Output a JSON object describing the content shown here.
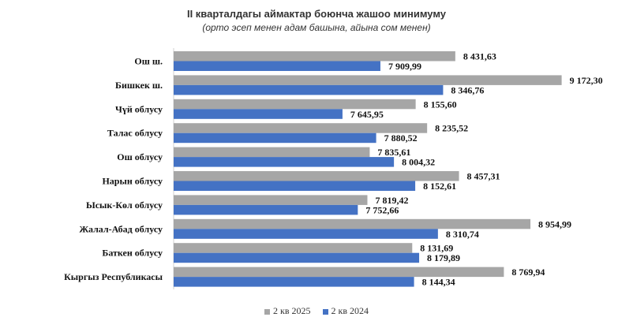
{
  "chart_data": {
    "type": "bar",
    "orientation": "horizontal",
    "title": "II кварталдагы аймактар боюнча жашоо минимуму",
    "subtitle": "(орто эсеп менен адам башына, айына сом менен)",
    "categories": [
      "Ош ш.",
      "Бишкек ш.",
      "Чүй облусу",
      "Талас облусу",
      "Ош облусу",
      "Нарын облусу",
      "Ысык-Көл облусу",
      "Жалал-Абад облусу",
      "Баткен облусу",
      "Кыргыз Республикасы"
    ],
    "series": [
      {
        "name": "2 кв 2025",
        "color": "#a6a6a6",
        "values": [
          8431.63,
          9172.3,
          8155.6,
          8235.52,
          7835.61,
          8457.31,
          7819.42,
          8954.99,
          8131.69,
          8769.94
        ],
        "labels": [
          "8 431,63",
          "9 172,30",
          "8 155,60",
          "8 235,52",
          "7 835,61",
          "8 457,31",
          "7 819,42",
          "8 954,99",
          "8 131,69",
          "8 769,94"
        ]
      },
      {
        "name": "2 кв 2024",
        "color": "#4472c4",
        "values": [
          7909.99,
          8346.76,
          7645.95,
          7880.52,
          8004.32,
          8152.61,
          7752.66,
          8310.74,
          8179.89,
          8144.34
        ],
        "labels": [
          "7 909,99",
          "8 346,76",
          "7 645,95",
          "7 880,52",
          "8 004,32",
          "8 152,61",
          "7 752,66",
          "8 310,74",
          "8 179,89",
          "8 144,34"
        ]
      }
    ],
    "xlim": [
      6470,
      9290
    ],
    "grid": false,
    "legend_position": "bottom"
  }
}
